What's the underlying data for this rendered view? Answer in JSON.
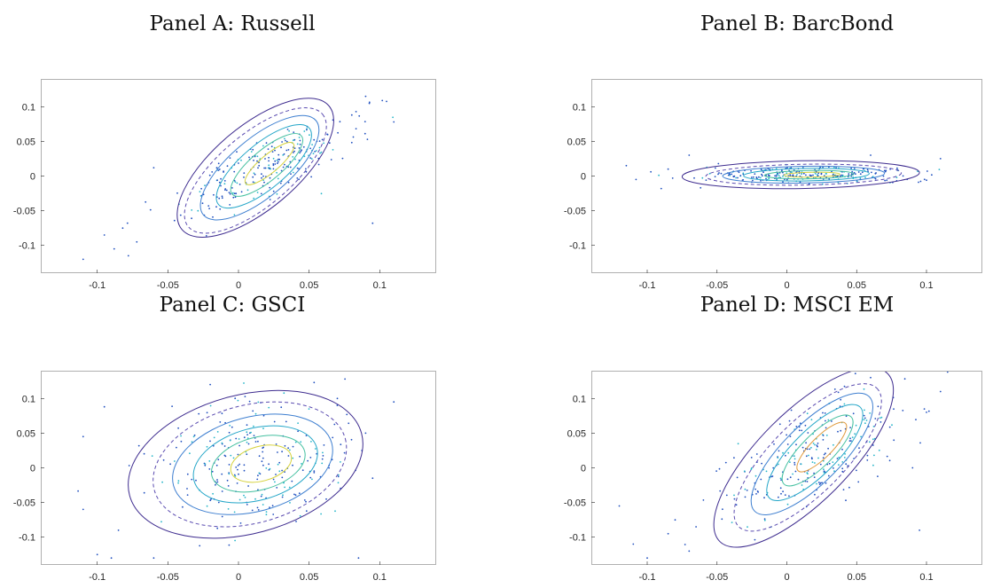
{
  "chart_data": [
    {
      "type": "scatter",
      "title": "Panel A: Russell",
      "xlim": [
        -0.14,
        0.14
      ],
      "ylim": [
        -0.14,
        0.14
      ],
      "xticks": [
        "-0.1",
        "-0.05",
        "0",
        "0.05",
        "0.1"
      ],
      "xtick_values": [
        -0.1,
        -0.05,
        0,
        0.05,
        0.1
      ],
      "yticks": [
        "0.1",
        "0.05",
        "0",
        "-0.05",
        "-0.1"
      ],
      "ytick_values": [
        0.1,
        0.05,
        0,
        -0.05,
        -0.1
      ],
      "grid": false,
      "center": [
        0.02,
        0.012
      ],
      "spread": [
        0.03,
        0.035
      ],
      "correlation": 0.8,
      "contours": [
        {
          "cx": 0.012,
          "cy": 0.012,
          "rx": 0.068,
          "ry": 0.06,
          "angle_deg": 40,
          "color": "#3e2c8f",
          "dashed": false
        },
        {
          "cx": 0.012,
          "cy": 0.008,
          "rx": 0.062,
          "ry": 0.052,
          "angle_deg": 40,
          "color": "#5a4bb0",
          "dashed": true
        },
        {
          "cx": 0.015,
          "cy": 0.012,
          "rx": 0.052,
          "ry": 0.042,
          "angle_deg": 40,
          "color": "#3e7fd0",
          "dashed": false
        },
        {
          "cx": 0.018,
          "cy": 0.014,
          "rx": 0.042,
          "ry": 0.032,
          "angle_deg": 40,
          "color": "#24a6c8",
          "dashed": false
        },
        {
          "cx": 0.02,
          "cy": 0.016,
          "rx": 0.032,
          "ry": 0.022,
          "angle_deg": 40,
          "color": "#45c0a0",
          "dashed": false
        },
        {
          "cx": 0.022,
          "cy": 0.018,
          "rx": 0.022,
          "ry": 0.013,
          "angle_deg": 40,
          "color": "#d6d23c",
          "dashed": false
        }
      ],
      "outliers": [
        [
          -0.11,
          -0.12
        ],
        [
          -0.095,
          -0.085
        ],
        [
          -0.088,
          -0.105
        ],
        [
          -0.078,
          -0.115
        ],
        [
          -0.082,
          -0.075
        ],
        [
          -0.072,
          -0.095
        ],
        [
          0.11,
          0.078
        ],
        [
          0.095,
          -0.068
        ],
        [
          0.09,
          0.115
        ],
        [
          -0.06,
          0.012
        ]
      ]
    },
    {
      "type": "scatter",
      "title": "Panel B: BarcBond",
      "xlim": [
        -0.14,
        0.14
      ],
      "ylim": [
        -0.14,
        0.14
      ],
      "xticks": [
        "-0.1",
        "-0.05",
        "0",
        "0.05",
        "0.1"
      ],
      "xtick_values": [
        -0.1,
        -0.05,
        0,
        0.05,
        0.1
      ],
      "yticks": [
        "0.1",
        "0.05",
        "0",
        "-0.05",
        "-0.1"
      ],
      "ytick_values": [
        0.1,
        0.05,
        0,
        -0.05,
        -0.1
      ],
      "grid": false,
      "center": [
        0.01,
        0.002
      ],
      "spread": [
        0.04,
        0.006
      ],
      "correlation": 0.1,
      "contours": [
        {
          "cx": 0.01,
          "cy": 0.002,
          "rx": 0.085,
          "ry": 0.02,
          "angle_deg": 1,
          "color": "#3e2c8f",
          "dashed": false
        },
        {
          "cx": 0.012,
          "cy": 0.002,
          "rx": 0.07,
          "ry": 0.015,
          "angle_deg": 1,
          "color": "#5a4bb0",
          "dashed": true
        },
        {
          "cx": 0.012,
          "cy": 0.002,
          "rx": 0.058,
          "ry": 0.012,
          "angle_deg": 1,
          "color": "#3e7fd0",
          "dashed": false
        },
        {
          "cx": 0.014,
          "cy": 0.002,
          "rx": 0.045,
          "ry": 0.009,
          "angle_deg": 1,
          "color": "#24a6c8",
          "dashed": false
        },
        {
          "cx": 0.016,
          "cy": 0.002,
          "rx": 0.032,
          "ry": 0.006,
          "angle_deg": 1,
          "color": "#45c0a0",
          "dashed": false
        },
        {
          "cx": 0.018,
          "cy": 0.002,
          "rx": 0.02,
          "ry": 0.0035,
          "angle_deg": 1,
          "color": "#d6d23c",
          "dashed": false
        }
      ],
      "outliers": [
        [
          -0.115,
          0.015
        ],
        [
          -0.108,
          -0.005
        ],
        [
          -0.09,
          -0.018
        ],
        [
          -0.085,
          0.01
        ],
        [
          0.11,
          0.025
        ],
        [
          0.1,
          -0.006
        ],
        [
          -0.07,
          0.03
        ],
        [
          0.06,
          0.03
        ]
      ]
    },
    {
      "type": "scatter",
      "title": "Panel C: GSCI",
      "xlim": [
        -0.14,
        0.14
      ],
      "ylim": [
        -0.14,
        0.14
      ],
      "xticks": [
        "-0.1",
        "-0.05",
        "0",
        "0.05",
        "0.1"
      ],
      "xtick_values": [
        -0.1,
        -0.05,
        0,
        0.05,
        0.1
      ],
      "yticks": [
        "0.1",
        "0.05",
        "0",
        "-0.05",
        "-0.1"
      ],
      "ytick_values": [
        0.1,
        0.05,
        0,
        -0.05,
        -0.1
      ],
      "grid": false,
      "center": [
        0.01,
        0.005
      ],
      "spread": [
        0.035,
        0.045
      ],
      "correlation": 0.1,
      "contours": [
        {
          "cx": 0.005,
          "cy": 0.005,
          "rx": 0.085,
          "ry": 0.1,
          "angle_deg": 15,
          "color": "#3e2c8f",
          "dashed": false
        },
        {
          "cx": 0.008,
          "cy": 0.005,
          "rx": 0.07,
          "ry": 0.085,
          "angle_deg": 15,
          "color": "#5a4bb0",
          "dashed": true
        },
        {
          "cx": 0.01,
          "cy": 0.005,
          "rx": 0.058,
          "ry": 0.068,
          "angle_deg": 15,
          "color": "#3e7fd0",
          "dashed": false
        },
        {
          "cx": 0.012,
          "cy": 0.005,
          "rx": 0.045,
          "ry": 0.052,
          "angle_deg": 15,
          "color": "#24a6c8",
          "dashed": false
        },
        {
          "cx": 0.014,
          "cy": 0.006,
          "rx": 0.034,
          "ry": 0.038,
          "angle_deg": 15,
          "color": "#45c0a0",
          "dashed": false
        },
        {
          "cx": 0.016,
          "cy": 0.006,
          "rx": 0.022,
          "ry": 0.025,
          "angle_deg": 15,
          "color": "#d6d23c",
          "dashed": false
        }
      ],
      "outliers": [
        [
          -0.11,
          0.045
        ],
        [
          -0.11,
          -0.06
        ],
        [
          -0.1,
          -0.125
        ],
        [
          -0.095,
          0.088
        ],
        [
          -0.09,
          -0.13
        ],
        [
          -0.085,
          -0.09
        ],
        [
          0.11,
          0.095
        ],
        [
          0.095,
          -0.015
        ],
        [
          0.09,
          0.05
        ],
        [
          -0.02,
          0.12
        ],
        [
          0.085,
          -0.13
        ],
        [
          0.07,
          0.1
        ],
        [
          -0.06,
          -0.13
        ]
      ]
    },
    {
      "type": "scatter",
      "title": "Panel D: MSCI EM",
      "xlim": [
        -0.14,
        0.14
      ],
      "ylim": [
        -0.14,
        0.14
      ],
      "xticks": [
        "-0.1",
        "-0.05",
        "0",
        "0.05",
        "0.1"
      ],
      "xtick_values": [
        -0.1,
        -0.05,
        0,
        0.05,
        0.1
      ],
      "yticks": [
        "0.1",
        "0.05",
        "0",
        "-0.05",
        "-0.1"
      ],
      "ytick_values": [
        0.1,
        0.05,
        0,
        -0.05,
        -0.1
      ],
      "grid": false,
      "center": [
        0.02,
        0.02
      ],
      "spread": [
        0.035,
        0.045
      ],
      "correlation": 0.7,
      "contours": [
        {
          "cx": 0.012,
          "cy": 0.015,
          "rx": 0.085,
          "ry": 0.065,
          "angle_deg": 45,
          "color": "#3e2c8f",
          "dashed": false
        },
        {
          "cx": 0.015,
          "cy": 0.015,
          "rx": 0.07,
          "ry": 0.052,
          "angle_deg": 45,
          "color": "#5a4bb0",
          "dashed": true
        },
        {
          "cx": 0.018,
          "cy": 0.02,
          "rx": 0.058,
          "ry": 0.042,
          "angle_deg": 45,
          "color": "#3e7fd0",
          "dashed": false
        },
        {
          "cx": 0.02,
          "cy": 0.022,
          "rx": 0.046,
          "ry": 0.032,
          "angle_deg": 45,
          "color": "#24a6c8",
          "dashed": false
        },
        {
          "cx": 0.022,
          "cy": 0.025,
          "rx": 0.034,
          "ry": 0.023,
          "angle_deg": 45,
          "color": "#45c0a0",
          "dashed": false
        },
        {
          "cx": 0.025,
          "cy": 0.03,
          "rx": 0.024,
          "ry": 0.015,
          "angle_deg": 45,
          "color": "#e09a3c",
          "dashed": false
        }
      ],
      "outliers": [
        [
          -0.11,
          -0.11
        ],
        [
          -0.1,
          -0.13
        ],
        [
          -0.085,
          -0.095
        ],
        [
          -0.08,
          -0.075
        ],
        [
          -0.07,
          -0.12
        ],
        [
          -0.065,
          -0.085
        ],
        [
          0.11,
          0.11
        ],
        [
          0.1,
          0.08
        ],
        [
          0.09,
          0.0
        ],
        [
          0.095,
          -0.09
        ],
        [
          0.06,
          0.13
        ],
        [
          -0.12,
          -0.055
        ]
      ]
    }
  ],
  "colors": {
    "point_dark": "#1f4fbf",
    "point_light": "#26b6c9",
    "axis": "#262626"
  }
}
